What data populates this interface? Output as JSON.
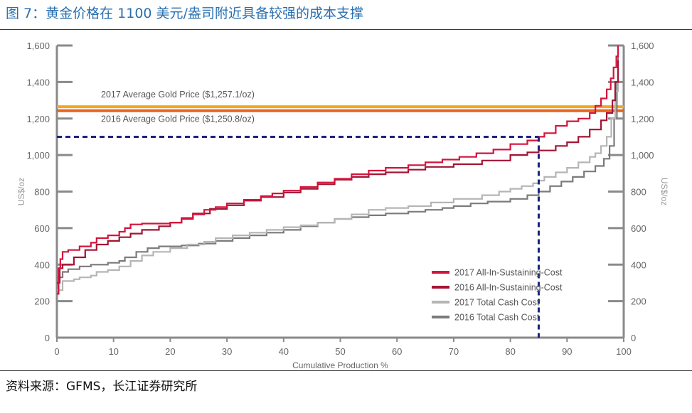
{
  "figure": {
    "title": "图 7：黄金价格在 1100 美元/盎司附近具备较强的成本支撑",
    "source": "资料来源：GFMS，长江证券研究所"
  },
  "colors": {
    "title_blue": "#2a6fb0",
    "aisc_2017": "#d4133c",
    "aisc_2016": "#a31433",
    "tcc_2017": "#b5b5b5",
    "tcc_2016": "#7b7b7b",
    "price_2017": "#f5a623",
    "price_2016": "#e8631e",
    "marker_dashed": "#1a237e",
    "axis": "#8a8a8a"
  },
  "chart_data": {
    "type": "line",
    "title": "",
    "xlabel": "Cumulative Production %",
    "ylabel_left": "US$/oz",
    "ylabel_right": "US$/oz",
    "xlim": [
      0,
      100
    ],
    "ylim": [
      0,
      1600
    ],
    "x_ticks": [
      0,
      10,
      20,
      30,
      40,
      50,
      60,
      70,
      80,
      90,
      100
    ],
    "y_ticks": [
      0,
      200,
      400,
      600,
      800,
      1000,
      1200,
      1400,
      1600
    ],
    "y_tick_labels": [
      "0",
      "200",
      "400",
      "600",
      "800",
      "1,000",
      "1,200",
      "1,400",
      "1,600"
    ],
    "grid": false,
    "legend_position": "bottom-right",
    "series": [
      {
        "name": "2017 All-In-Sustaining-Cost",
        "color": "#d4133c",
        "step": true,
        "points": [
          [
            0,
            240
          ],
          [
            0.3,
            380
          ],
          [
            0.6,
            430
          ],
          [
            1,
            470
          ],
          [
            2,
            480
          ],
          [
            4,
            500
          ],
          [
            6,
            520
          ],
          [
            7,
            545
          ],
          [
            9,
            560
          ],
          [
            11,
            580
          ],
          [
            12,
            600
          ],
          [
            13,
            620
          ],
          [
            15,
            625
          ],
          [
            20,
            630
          ],
          [
            22,
            650
          ],
          [
            24,
            675
          ],
          [
            26,
            700
          ],
          [
            28,
            715
          ],
          [
            30,
            735
          ],
          [
            33,
            755
          ],
          [
            36,
            775
          ],
          [
            38,
            790
          ],
          [
            40,
            805
          ],
          [
            43,
            825
          ],
          [
            46,
            850
          ],
          [
            49,
            870
          ],
          [
            52,
            895
          ],
          [
            55,
            915
          ],
          [
            58,
            930
          ],
          [
            62,
            945
          ],
          [
            65,
            960
          ],
          [
            68,
            975
          ],
          [
            71,
            990
          ],
          [
            74,
            1010
          ],
          [
            77,
            1030
          ],
          [
            80,
            1060
          ],
          [
            83,
            1080
          ],
          [
            85,
            1100
          ],
          [
            86,
            1120
          ],
          [
            88,
            1160
          ],
          [
            90,
            1185
          ],
          [
            92,
            1200
          ],
          [
            94,
            1230
          ],
          [
            95,
            1270
          ],
          [
            96,
            1310
          ],
          [
            97,
            1360
          ],
          [
            97.7,
            1420
          ],
          [
            98.2,
            1480
          ],
          [
            98.7,
            1540
          ],
          [
            99,
            1600
          ]
        ]
      },
      {
        "name": "2016 All-In-Sustaining-Cost",
        "color": "#a31433",
        "step": true,
        "points": [
          [
            0,
            300
          ],
          [
            0.5,
            380
          ],
          [
            1,
            400
          ],
          [
            3,
            440
          ],
          [
            5,
            480
          ],
          [
            7,
            510
          ],
          [
            9,
            530
          ],
          [
            11,
            550
          ],
          [
            13,
            570
          ],
          [
            15,
            590
          ],
          [
            18,
            610
          ],
          [
            20,
            630
          ],
          [
            22,
            655
          ],
          [
            24,
            680
          ],
          [
            27,
            705
          ],
          [
            30,
            725
          ],
          [
            33,
            750
          ],
          [
            36,
            770
          ],
          [
            40,
            795
          ],
          [
            43,
            815
          ],
          [
            46,
            840
          ],
          [
            49,
            865
          ],
          [
            52,
            880
          ],
          [
            55,
            895
          ],
          [
            58,
            905
          ],
          [
            62,
            920
          ],
          [
            65,
            935
          ],
          [
            70,
            950
          ],
          [
            75,
            970
          ],
          [
            80,
            1000
          ],
          [
            83,
            1015
          ],
          [
            85,
            1025
          ],
          [
            88,
            1050
          ],
          [
            90,
            1070
          ],
          [
            92,
            1100
          ],
          [
            94,
            1140
          ],
          [
            96,
            1190
          ],
          [
            97,
            1230
          ],
          [
            98,
            1300
          ],
          [
            98.5,
            1400
          ],
          [
            99,
            1520
          ]
        ]
      },
      {
        "name": "2017 Total Cash Cost",
        "color": "#b5b5b5",
        "step": true,
        "points": [
          [
            0,
            260
          ],
          [
            1,
            310
          ],
          [
            3,
            320
          ],
          [
            4,
            330
          ],
          [
            6,
            340
          ],
          [
            7,
            360
          ],
          [
            9,
            370
          ],
          [
            11,
            390
          ],
          [
            13,
            420
          ],
          [
            15,
            450
          ],
          [
            17,
            470
          ],
          [
            20,
            490
          ],
          [
            23,
            510
          ],
          [
            26,
            525
          ],
          [
            28,
            545
          ],
          [
            31,
            560
          ],
          [
            34,
            575
          ],
          [
            37,
            590
          ],
          [
            40,
            605
          ],
          [
            43,
            615
          ],
          [
            46,
            630
          ],
          [
            49,
            650
          ],
          [
            52,
            675
          ],
          [
            55,
            700
          ],
          [
            58,
            710
          ],
          [
            62,
            720
          ],
          [
            66,
            740
          ],
          [
            70,
            760
          ],
          [
            75,
            780
          ],
          [
            78,
            800
          ],
          [
            80,
            815
          ],
          [
            82,
            830
          ],
          [
            84,
            845
          ],
          [
            85,
            860
          ],
          [
            86,
            880
          ],
          [
            88,
            905
          ],
          [
            90,
            930
          ],
          [
            92,
            960
          ],
          [
            94,
            990
          ],
          [
            95,
            1010
          ],
          [
            96,
            1050
          ],
          [
            97,
            1100
          ],
          [
            97.8,
            1200
          ],
          [
            98.5,
            1350
          ],
          [
            99,
            1500
          ]
        ]
      },
      {
        "name": "2016 Total Cash Cost",
        "color": "#7b7b7b",
        "step": true,
        "points": [
          [
            0,
            330
          ],
          [
            1,
            360
          ],
          [
            2,
            375
          ],
          [
            4,
            390
          ],
          [
            6,
            400
          ],
          [
            9,
            410
          ],
          [
            11,
            420
          ],
          [
            12,
            440
          ],
          [
            14,
            470
          ],
          [
            16,
            490
          ],
          [
            18,
            500
          ],
          [
            22,
            505
          ],
          [
            25,
            515
          ],
          [
            28,
            530
          ],
          [
            31,
            545
          ],
          [
            34,
            560
          ],
          [
            37,
            575
          ],
          [
            40,
            590
          ],
          [
            43,
            610
          ],
          [
            46,
            630
          ],
          [
            49,
            650
          ],
          [
            52,
            660
          ],
          [
            55,
            670
          ],
          [
            58,
            680
          ],
          [
            62,
            690
          ],
          [
            65,
            700
          ],
          [
            68,
            710
          ],
          [
            70,
            720
          ],
          [
            73,
            735
          ],
          [
            76,
            745
          ],
          [
            80,
            760
          ],
          [
            83,
            780
          ],
          [
            85,
            800
          ],
          [
            87,
            830
          ],
          [
            89,
            855
          ],
          [
            91,
            880
          ],
          [
            93,
            910
          ],
          [
            95,
            940
          ],
          [
            96.5,
            980
          ],
          [
            97.5,
            1050
          ],
          [
            98.3,
            1200
          ],
          [
            98.8,
            1400
          ],
          [
            99,
            1600
          ]
        ]
      }
    ],
    "reference_lines": [
      {
        "label": "2017 Average Gold Price ($1,257.1/oz)",
        "y": 1257.1,
        "color": "#f5a623"
      },
      {
        "label": "2016 Average Gold Price ($1,250.8/oz)",
        "y": 1250.8,
        "color": "#e8631e"
      }
    ],
    "marker_lines": {
      "y": 1100,
      "x": 85,
      "style": "dashed",
      "color": "#1a237e"
    }
  }
}
